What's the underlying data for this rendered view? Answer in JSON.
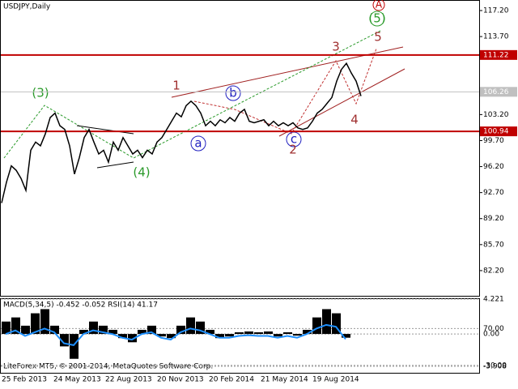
{
  "chart_data": {
    "type": "line",
    "title": "USDJPY,Daily",
    "color": "#000000",
    "values": [
      91.3,
      94.1,
      96.3,
      95.7,
      94.6,
      93.0,
      98.4,
      99.5,
      99.0,
      100.6,
      102.8,
      103.4,
      101.7,
      101.2,
      99.0,
      95.2,
      97.4,
      100.1,
      101.2,
      99.5,
      97.9,
      98.4,
      96.8,
      99.5,
      98.4,
      100.1,
      99.0,
      97.9,
      98.4,
      97.4,
      98.4,
      97.9,
      99.5,
      100.1,
      101.2,
      102.3,
      103.4,
      102.9,
      104.4,
      105.0,
      104.4,
      103.4,
      101.7,
      102.3,
      101.7,
      102.5,
      102.1,
      102.8,
      102.3,
      103.4,
      103.9,
      102.3,
      102.1,
      102.3,
      102.5,
      101.7,
      102.3,
      101.7,
      102.1,
      101.7,
      102.1,
      101.4,
      101.2,
      101.4,
      102.3,
      103.4,
      103.9,
      104.7,
      105.5,
      107.7,
      109.3,
      110.1,
      108.8,
      107.7,
      105.7
    ],
    "ylim": [
      78.81,
      118.62
    ],
    "yticks": [
      {
        "value": 117.2,
        "label": "117.20"
      },
      {
        "value": 113.7,
        "label": "113.70"
      },
      {
        "value": 103.2,
        "label": "103.20"
      },
      {
        "value": 99.7,
        "label": "99.70"
      },
      {
        "value": 96.2,
        "label": "96.20"
      },
      {
        "value": 92.7,
        "label": "92.70"
      },
      {
        "value": 89.2,
        "label": "89.20"
      },
      {
        "value": 85.7,
        "label": "85.70"
      },
      {
        "value": 82.2,
        "label": "82.20"
      }
    ],
    "levels": [
      {
        "value": 111.22,
        "label": "111.22",
        "color": "#c00000"
      },
      {
        "value": 100.94,
        "label": "100.94",
        "color": "#c00000"
      },
      {
        "value": 106.26,
        "label": "106.26",
        "color": "#c0c0c0"
      }
    ],
    "date_labels": [
      "25 Feb 2013",
      "24 May 2013",
      "22 Aug 2013",
      "20 Nov 2013",
      "20 Feb 2014",
      "21 May 2014",
      "19 Aug 2014"
    ],
    "waves": [
      "(3)",
      "(4)",
      "(5)",
      "A",
      "1",
      "2",
      "3",
      "4",
      "5",
      "a",
      "b",
      "c"
    ],
    "indicator": {
      "title": "MACD(5,34,5) -0.452 -0.052 RSI(14) 41.17",
      "macd": [
        1.5,
        2.0,
        1.0,
        2.5,
        3.0,
        1.0,
        -1.5,
        -3.0,
        0.5,
        1.5,
        1.0,
        0.5,
        -0.5,
        -1.0,
        0.5,
        1.0,
        -0.3,
        -0.5,
        1.0,
        2.0,
        1.5,
        0.5,
        -0.5,
        -0.3,
        0.2,
        0.3,
        0.2,
        0.3,
        -0.3,
        0.2,
        -0.2,
        0.5,
        2.0,
        3.0,
        2.5,
        -0.452
      ],
      "macd_color": "#000000",
      "ylim": [
        -3.908,
        4.221
      ],
      "yticks": [
        {
          "value": 4.221,
          "label": "4.221"
        },
        {
          "value": 0,
          "label": "0.00"
        },
        {
          "value": -3.908,
          "label": "-3.908"
        }
      ],
      "rsi": [
        55,
        65,
        50,
        60,
        70,
        60,
        30,
        25,
        55,
        65,
        60,
        55,
        45,
        40,
        55,
        60,
        45,
        40,
        60,
        70,
        65,
        55,
        45,
        45,
        50,
        52,
        50,
        50,
        45,
        50,
        45,
        55,
        70,
        80,
        75,
        41.17
      ],
      "rsi_color": "#1e90ff",
      "y2lim": [
        -50,
        150
      ],
      "y2ticks": [
        {
          "value": 70,
          "label": "70.00"
        },
        {
          "value": -30,
          "label": "-30.00"
        }
      ]
    },
    "footer": "LiteForex MT5, © 2001-2014, MetaQuotes Software Corp."
  }
}
